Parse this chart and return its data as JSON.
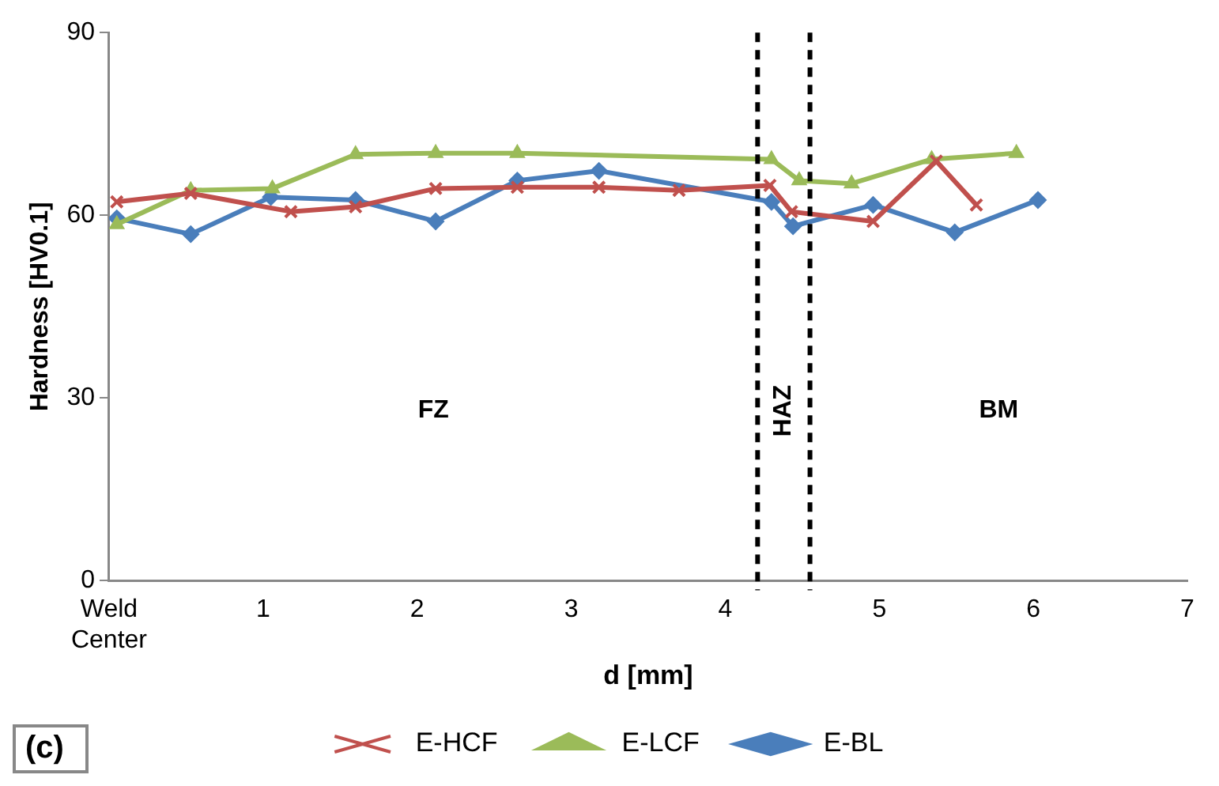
{
  "chart_data": {
    "type": "line",
    "xlabel": "d [mm]",
    "ylabel": "Hardness [HV0.1]",
    "xlim": [
      0,
      7
    ],
    "xticks": [
      {
        "value": 0,
        "label": "Weld Center"
      },
      1,
      2,
      3,
      4,
      5,
      6,
      7
    ],
    "ylim": [
      0,
      90
    ],
    "yticks": [
      0,
      30,
      60,
      90
    ],
    "grid": false,
    "legend": "bottom",
    "line_style": "solid",
    "series": [
      {
        "name": "E-BL",
        "color": "#4a7ebb",
        "marker": "diamond",
        "x": [
          0.05,
          0.53,
          1.05,
          1.6,
          2.12,
          2.65,
          3.18,
          4.3,
          4.44,
          4.96,
          5.49,
          6.03
        ],
        "values": [
          59.5,
          56.9,
          63,
          62.5,
          59,
          65.7,
          67.3,
          62.2,
          58.2,
          61.7,
          57.2,
          62.5
        ]
      },
      {
        "name": "E-LCF",
        "color": "#9bbb59",
        "marker": "triangle",
        "x": [
          0.05,
          0.53,
          1.06,
          1.6,
          2.12,
          2.65,
          4.3,
          4.48,
          4.82,
          5.34,
          5.89
        ],
        "values": [
          58.5,
          64.1,
          64.4,
          70,
          70.2,
          70.2,
          69.2,
          65.7,
          65.2,
          69.2,
          70.2
        ]
      },
      {
        "name": "E-HCF",
        "color": "#c0504d",
        "marker": "cross",
        "x": [
          0.05,
          0.53,
          1.18,
          1.6,
          2.12,
          2.65,
          3.18,
          3.7,
          4.29,
          4.43,
          4.96,
          5.37,
          5.63
        ],
        "values": [
          62.2,
          63.6,
          60.6,
          61.4,
          64.4,
          64.6,
          64.6,
          64.1,
          64.9,
          60.6,
          59,
          68.9,
          61.7
        ]
      }
    ],
    "ref_lines": [
      {
        "axis": "x",
        "value": 4.21,
        "color": "#000000",
        "line_style": "dashed"
      },
      {
        "axis": "x",
        "value": 4.55,
        "color": "#000000",
        "line_style": "dashed"
      }
    ],
    "annotations": [
      "FZ",
      "HAZ",
      "BM",
      "(c)"
    ]
  }
}
